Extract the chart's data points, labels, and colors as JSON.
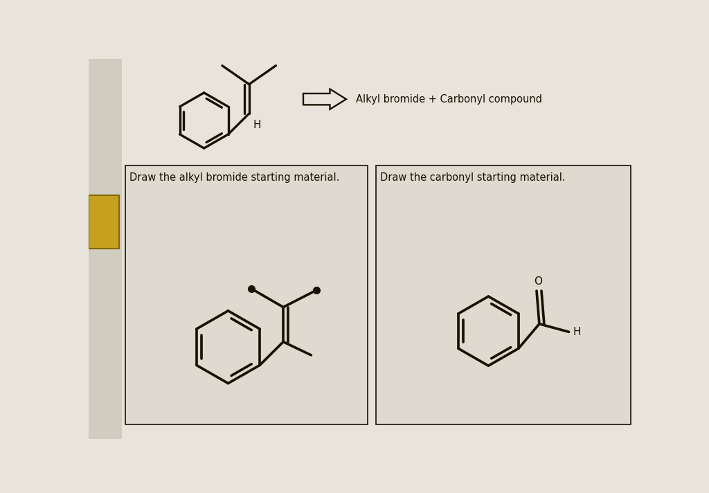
{
  "bg_main": "#e8e4dc",
  "bg_box": "#e0dcd0",
  "line_color": "#1a1000",
  "text_color": "#1a1000",
  "title_arrow_text": "Alkyl bromide + Carbonyl compound",
  "box1_label": "Draw the alkyl bromide starting material.",
  "box2_label": "Draw the carbonyl starting material.",
  "font_size_label": 10.5,
  "font_size_atom": 11,
  "line_width": 2.2,
  "gold_color": "#c8a020",
  "gold_dark": "#7a6010"
}
